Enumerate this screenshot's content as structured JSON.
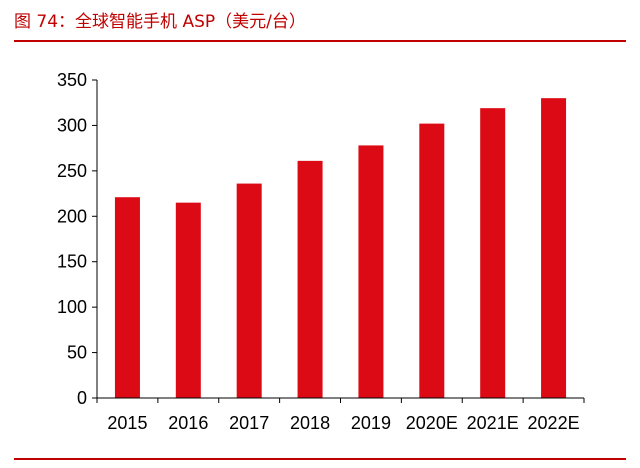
{
  "figure": {
    "title": "图 74：全球智能手机 ASP（美元/台）"
  },
  "colors": {
    "bar": "#dc0a14",
    "accent": "#c00000",
    "axis": "#000000"
  },
  "chart_data": {
    "type": "bar",
    "title": "图 74：全球智能手机 ASP（美元/台）",
    "categories": [
      "2015",
      "2016",
      "2017",
      "2018",
      "2019",
      "2020E",
      "2021E",
      "2022E"
    ],
    "values": [
      221,
      215,
      236,
      261,
      278,
      302,
      319,
      330
    ],
    "ylim": [
      0,
      350
    ],
    "yticks": [
      0,
      50,
      100,
      150,
      200,
      250,
      300,
      350
    ],
    "grid": false,
    "legend": "none"
  }
}
